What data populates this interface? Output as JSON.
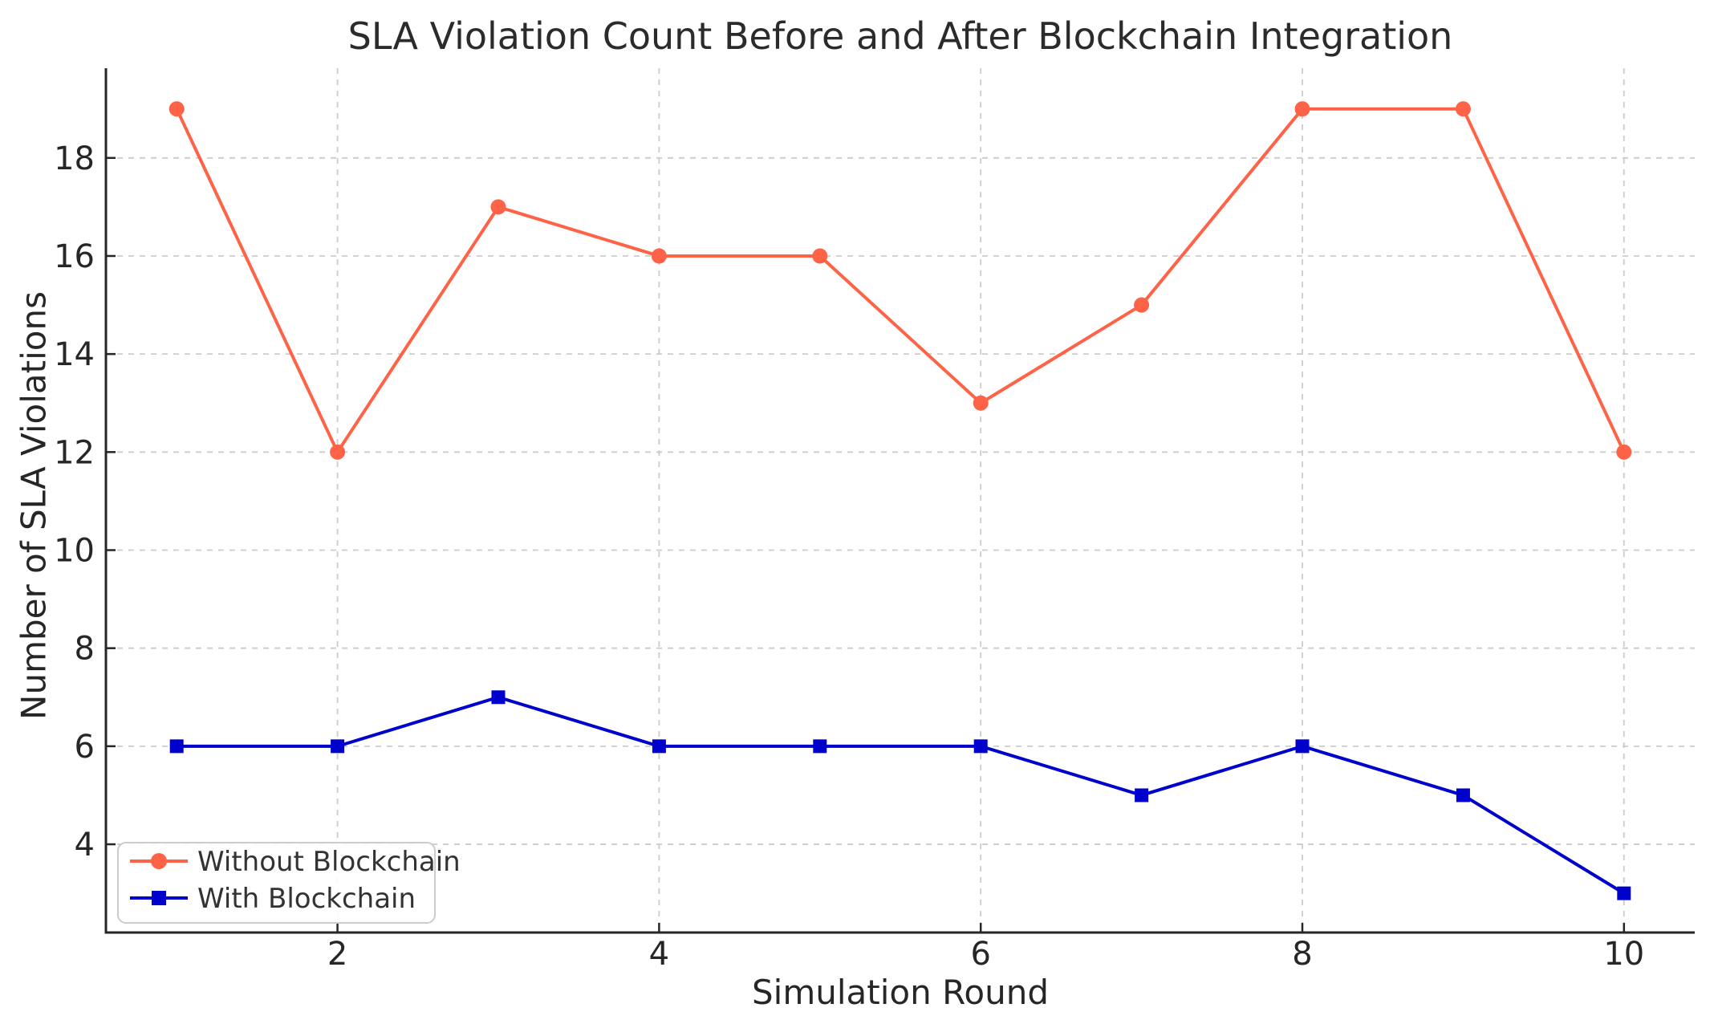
{
  "chart_data": {
    "type": "line",
    "title": "SLA Violation Count Before and After Blockchain Integration",
    "xlabel": "Simulation Round",
    "ylabel": "Number of SLA Violations",
    "x": [
      1,
      2,
      3,
      4,
      5,
      6,
      7,
      8,
      9,
      10
    ],
    "series": [
      {
        "name": "Without Blockchain",
        "color": "#ff6347",
        "marker": "circle",
        "values": [
          19,
          12,
          17,
          16,
          16,
          13,
          15,
          19,
          19,
          12
        ]
      },
      {
        "name": "With Blockchain",
        "color": "#0000cd",
        "marker": "square",
        "values": [
          6,
          6,
          7,
          6,
          6,
          6,
          5,
          6,
          5,
          3
        ]
      }
    ],
    "xticks": [
      2,
      4,
      6,
      8,
      10
    ],
    "yticks": [
      4,
      6,
      8,
      10,
      12,
      14,
      16,
      18
    ],
    "xlim": [
      0.56,
      10.44
    ],
    "ylim": [
      2.2,
      19.83
    ],
    "grid": {
      "visible": true,
      "style": "dashed",
      "color": "#cccccc"
    },
    "legend": {
      "position": "lower left"
    },
    "text_color": "#262626",
    "spine_color": "#262626",
    "legend_text_color": "#333333",
    "legend_border_color": "#cccccc"
  }
}
